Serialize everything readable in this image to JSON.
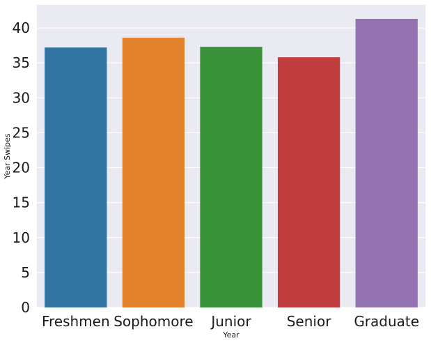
{
  "chart_data": {
    "type": "bar",
    "title": "",
    "xlabel": "Year",
    "ylabel": "Year Swipes",
    "categories": [
      "Freshmen",
      "Sophomore",
      "Junior",
      "Senior",
      "Graduate"
    ],
    "values": [
      37.2,
      38.6,
      37.3,
      35.8,
      41.3
    ],
    "colors": [
      "#3274a1",
      "#e1812c",
      "#3a923a",
      "#c03d3e",
      "#9372b2"
    ],
    "ylim": [
      0,
      43.3
    ],
    "yticks": [
      0,
      5,
      10,
      15,
      20,
      25,
      30,
      35,
      40
    ],
    "grid": true,
    "background": "#eaeaf2",
    "grid_color": "#ffffff"
  }
}
